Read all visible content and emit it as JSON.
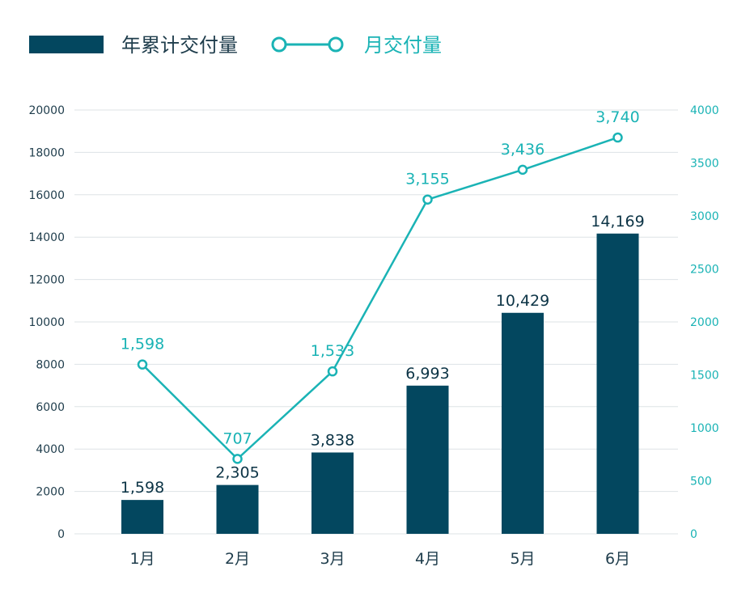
{
  "colors": {
    "bar": "#03475f",
    "line": "#1ab3b5",
    "grid": "#dde3e6",
    "left_tick": "#1f3d4c",
    "right_tick": "#1ab3b5"
  },
  "legend": {
    "bar_label": "年累计交付量",
    "line_label": "月交付量"
  },
  "chart_data": {
    "type": "bar",
    "categories": [
      "1月",
      "2月",
      "3月",
      "4月",
      "5月",
      "6月"
    ],
    "series": [
      {
        "name": "年累计交付量",
        "type": "bar",
        "axis": "left",
        "values": [
          1598,
          2305,
          3838,
          6993,
          10429,
          14169
        ],
        "labels": [
          "1,598",
          "2,305",
          "3,838",
          "6,993",
          "10,429",
          "14,169"
        ]
      },
      {
        "name": "月交付量",
        "type": "line",
        "axis": "right",
        "values": [
          1598,
          707,
          1533,
          3155,
          3436,
          3740
        ],
        "labels": [
          "1,598",
          "707",
          "1,533",
          "3,155",
          "3,436",
          "3,740"
        ]
      }
    ],
    "y_left": {
      "ylim": [
        0,
        20000
      ],
      "ticks": [
        "0",
        "2000",
        "4000",
        "6000",
        "8000",
        "10000",
        "12000",
        "14000",
        "16000",
        "18000",
        "20000"
      ]
    },
    "y_right": {
      "ylim": [
        0,
        4000
      ],
      "ticks": [
        "0",
        "500",
        "1000",
        "1500",
        "2000",
        "2500",
        "3000",
        "3500",
        "4000"
      ]
    },
    "grid": true,
    "legend_position": "top-left"
  }
}
